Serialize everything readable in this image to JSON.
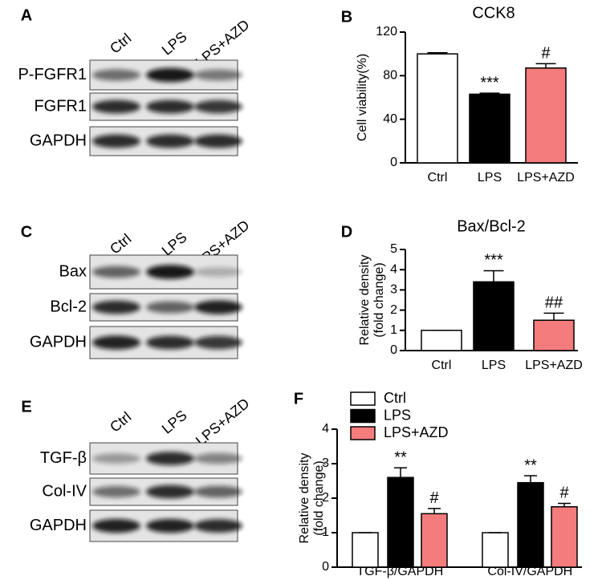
{
  "blots": [
    {
      "panel_label": "A",
      "lanes": [
        "Ctrl",
        "LPS",
        "LPS+AZD"
      ],
      "rows": [
        "P-FGFR1",
        "FGFR1",
        "GAPDH"
      ]
    },
    {
      "panel_label": "C",
      "lanes": [
        "Ctrl",
        "LPS",
        "LPS+AZD"
      ],
      "rows": [
        "Bax",
        "Bcl-2",
        "GAPDH"
      ]
    },
    {
      "panel_label": "E",
      "lanes": [
        "Ctrl",
        "LPS",
        "LPS+AZD"
      ],
      "rows": [
        "TGF-β",
        "Col-IV",
        "GAPDH"
      ]
    }
  ],
  "chart_data": [
    {
      "type": "bar",
      "panel_label": "B",
      "title": "CCK8",
      "y_label": [
        "Cell viability(%)"
      ],
      "categories": [
        "Ctrl",
        "LPS",
        "LPS+AZD"
      ],
      "values": [
        100,
        63,
        87
      ],
      "errors": [
        1,
        1,
        4
      ],
      "annotations": [
        null,
        "***",
        "#"
      ],
      "colors": [
        "#ffffff",
        "#000000",
        "#f47c7c"
      ],
      "ylim": [
        0,
        120
      ],
      "yticks": [
        0,
        40,
        80,
        120
      ]
    },
    {
      "type": "bar",
      "panel_label": "D",
      "title": "Bax/Bcl-2",
      "y_label": [
        "Relative density",
        "(fold change)"
      ],
      "categories": [
        "Ctrl",
        "LPS",
        "LPS+AZD"
      ],
      "values": [
        1,
        3.4,
        1.5
      ],
      "errors": [
        0,
        0.55,
        0.35
      ],
      "annotations": [
        null,
        "***",
        "##"
      ],
      "colors": [
        "#ffffff",
        "#000000",
        "#f47c7c"
      ],
      "ylim": [
        0,
        5
      ],
      "yticks": [
        0,
        1,
        2,
        3,
        4,
        5
      ]
    },
    {
      "type": "grouped_bar",
      "panel_label": "F",
      "y_label": [
        "Relative density",
        "(fold change)"
      ],
      "categories": [
        "TGF-β/GAPDH",
        "Col-IV/GAPDH"
      ],
      "legend": "top-left",
      "series": [
        {
          "name": "Ctrl",
          "color": "#ffffff",
          "values": [
            1,
            1
          ],
          "errors": [
            0,
            0
          ]
        },
        {
          "name": "LPS",
          "color": "#000000",
          "values": [
            2.6,
            2.45
          ],
          "errors": [
            0.28,
            0.2
          ],
          "annotations": [
            "**",
            "**"
          ]
        },
        {
          "name": "LPS+AZD",
          "color": "#f47c7c",
          "values": [
            1.55,
            1.75
          ],
          "errors": [
            0.15,
            0.1
          ],
          "annotations": [
            "#",
            "#"
          ]
        }
      ],
      "ylim": [
        0,
        4
      ],
      "yticks": [
        0,
        1,
        2,
        3,
        4
      ]
    }
  ]
}
